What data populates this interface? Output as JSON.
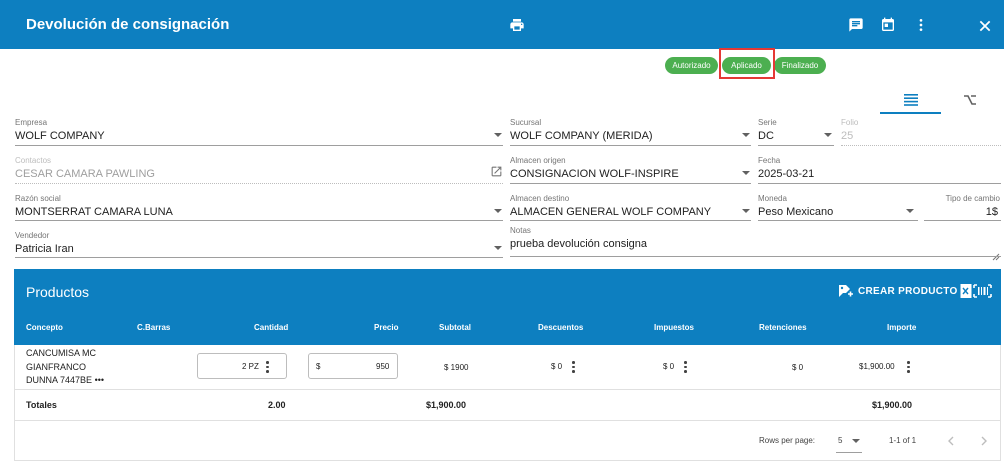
{
  "header": {
    "title": "Devolución de consignación",
    "icons": [
      "print-icon",
      "comment-icon",
      "calendar-icon",
      "more-vert-icon",
      "close-icon"
    ]
  },
  "status": {
    "chips": [
      "Autorizado",
      "Aplicado",
      "Finalizado"
    ],
    "highlighted": "Aplicado",
    "chip_color": "#4caf50",
    "highlight_color": "#e53935"
  },
  "tabs": {
    "icons": [
      "list-icon",
      "branch-icon"
    ],
    "active": "list-icon"
  },
  "form": {
    "empresa": {
      "label": "Empresa",
      "value": "WOLF COMPANY"
    },
    "sucursal": {
      "label": "Sucursal",
      "value": "WOLF COMPANY (MERIDA)"
    },
    "serie": {
      "label": "Serie",
      "value": "DC"
    },
    "folio": {
      "label": "Folio",
      "value": "25"
    },
    "contactos": {
      "label": "Contactos",
      "value": "CESAR CAMARA PAWLING"
    },
    "almacen_origen": {
      "label": "Almacen origen",
      "value": "CONSIGNACION WOLF-INSPIRE"
    },
    "fecha": {
      "label": "Fecha",
      "value": "2025-03-21"
    },
    "razon_social": {
      "label": "Razón social",
      "value": "MONTSERRAT CAMARA LUNA"
    },
    "almacen_destino": {
      "label": "Almacen destino",
      "value": "ALMACEN GENERAL WOLF COMPANY"
    },
    "moneda": {
      "label": "Moneda",
      "value": "Peso Mexicano"
    },
    "tipo_cambio": {
      "label": "Tipo de cambio",
      "value": "1$"
    },
    "vendedor": {
      "label": "Vendedor",
      "value": "Patricia Iran"
    },
    "notas": {
      "label": "Notas",
      "value": "prueba devolución consigna"
    }
  },
  "products": {
    "title": "Productos",
    "create_label": "CREAR PRODUCTO",
    "columns": [
      "Concepto",
      "C.Barras",
      "Cantidad",
      "Precio",
      "Subtotal",
      "Descuentos",
      "Impuestos",
      "Retenciones",
      "Importe"
    ],
    "rows": [
      {
        "concepto": [
          "CANCUMISA MC",
          "GIANFRANCO",
          "DUNNA 7447BE"
        ],
        "more": "•••",
        "cantidad": "2 PZ",
        "precio_symbol": "$",
        "precio": "950",
        "subtotal": "$ 1900",
        "descuentos": "$ 0",
        "impuestos": "$ 0",
        "retenciones": "$ 0",
        "importe": "$1,900.00"
      }
    ],
    "totals": {
      "label": "Totales",
      "cantidad": "2.00",
      "subtotal": "$1,900.00",
      "importe": "$1,900.00"
    }
  },
  "pagination": {
    "rows_label": "Rows per page:",
    "rows_value": "5",
    "range": "1-1 of 1"
  },
  "theme": {
    "primary": "#0d7fc0"
  }
}
